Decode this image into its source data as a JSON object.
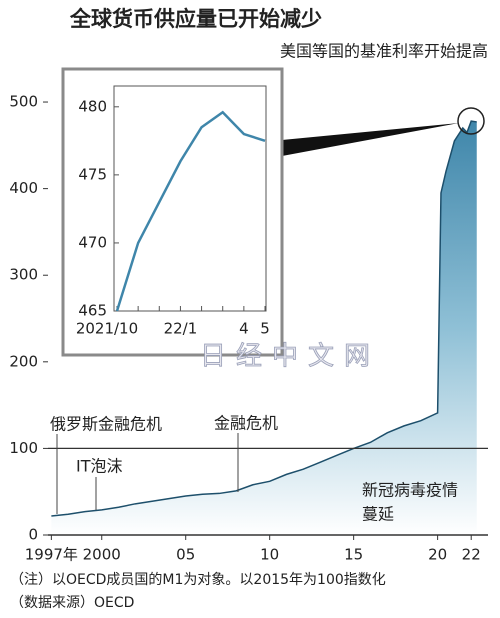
{
  "chart_data": [
    {
      "type": "area",
      "title": "全球货币供应量已开始减少",
      "callout": "美国等国的基准利率开始提高",
      "x": [
        1997,
        1998,
        1999,
        2000,
        2001,
        2002,
        2003,
        2004,
        2005,
        2006,
        2007,
        2008,
        2009,
        2010,
        2011,
        2012,
        2013,
        2014,
        2015,
        2016,
        2017,
        2018,
        2019,
        2020,
        2020.2,
        2020.5,
        2021,
        2021.5,
        2021.75,
        2022,
        2022.33
      ],
      "values": [
        22,
        24,
        27,
        29,
        32,
        36,
        39,
        42,
        45,
        47,
        48,
        51,
        58,
        62,
        70,
        76,
        84,
        92,
        100,
        107,
        118,
        126,
        132,
        141,
        395,
        420,
        455,
        470,
        465,
        478,
        477
      ],
      "color": "#3f86aa",
      "xlim": [
        1996.8,
        2023
      ],
      "xticks": [
        {
          "value": 1997,
          "label": "1997年"
        },
        2000,
        {
          "value": 2005,
          "label": "05"
        },
        {
          "value": 2010,
          "label": "10"
        },
        {
          "value": 2015,
          "label": "15"
        },
        {
          "value": 2020,
          "label": "20"
        },
        {
          "value": 2022,
          "label": "22"
        }
      ],
      "ylim": [
        0,
        505
      ],
      "yticks": [
        0,
        100,
        200,
        300,
        400,
        500
      ],
      "hline": 100,
      "annotations": [
        "俄罗斯金融危机",
        "IT泡沫",
        "金融危机",
        "新冠病毒疫情",
        "蔓延"
      ],
      "watermark": "日经中文网",
      "notes": [
        "（注）以OECD成员国的M1为对象。以2015年为100指数化",
        "（数据来源）OECD"
      ]
    },
    {
      "type": "line",
      "categories": [
        "2021/10",
        null,
        null,
        "22/1",
        null,
        null,
        "4",
        "5"
      ],
      "values": [
        465,
        470,
        473,
        476,
        478.5,
        479.6,
        478,
        477.5
      ],
      "color": "#3f86aa",
      "ylim": [
        465,
        480.5
      ],
      "yticks": [
        465,
        470,
        475,
        480
      ]
    }
  ]
}
